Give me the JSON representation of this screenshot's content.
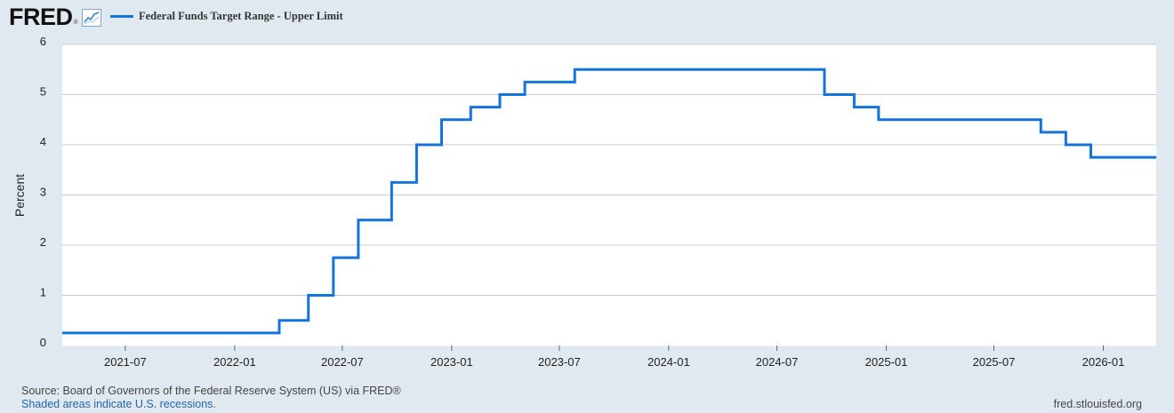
{
  "header": {
    "logo_text": "FRED",
    "logo_reg": "®",
    "logo_icon": "line-chart-icon",
    "legend_label": "Federal Funds Target Range - Upper Limit"
  },
  "footer": {
    "source": "Source: Board of Governors of the Federal Reserve System (US) via FRED®",
    "recessions": "Shaded areas indicate U.S. recessions.",
    "site": "fred.stlouisfed.org"
  },
  "colors": {
    "background": "#e1e9f0",
    "plot_background": "#ffffff",
    "series": "#1573dc",
    "grid": "#cccccc"
  },
  "chart_data": {
    "type": "line",
    "step": true,
    "title": "",
    "ylabel": "Percent",
    "ylim": [
      0,
      6
    ],
    "xlim": [
      "2021-03-17",
      "2026-03-31"
    ],
    "yticks": [
      0,
      1,
      2,
      3,
      4,
      5,
      6
    ],
    "xticks": [
      "2021-07",
      "2022-01",
      "2022-07",
      "2023-01",
      "2023-07",
      "2024-01",
      "2024-07",
      "2025-01",
      "2025-07",
      "2026-01"
    ],
    "grid": true,
    "legend": "top-left",
    "series": [
      {
        "name": "Federal Funds Target Range - Upper Limit",
        "points": [
          {
            "x": "2021-03-17",
            "y": 0.25
          },
          {
            "x": "2022-03-17",
            "y": 0.5
          },
          {
            "x": "2022-05-05",
            "y": 1.0
          },
          {
            "x": "2022-06-16",
            "y": 1.75
          },
          {
            "x": "2022-07-28",
            "y": 2.5
          },
          {
            "x": "2022-09-22",
            "y": 3.25
          },
          {
            "x": "2022-11-03",
            "y": 4.0
          },
          {
            "x": "2022-12-15",
            "y": 4.5
          },
          {
            "x": "2023-02-02",
            "y": 4.75
          },
          {
            "x": "2023-03-23",
            "y": 5.0
          },
          {
            "x": "2023-05-04",
            "y": 5.25
          },
          {
            "x": "2023-07-27",
            "y": 5.5
          },
          {
            "x": "2024-09-19",
            "y": 5.0
          },
          {
            "x": "2024-11-08",
            "y": 4.75
          },
          {
            "x": "2024-12-19",
            "y": 4.5
          },
          {
            "x": "2025-09-18",
            "y": 4.25
          },
          {
            "x": "2025-10-30",
            "y": 4.0
          },
          {
            "x": "2025-12-11",
            "y": 3.75
          },
          {
            "x": "2026-03-31",
            "y": 3.75
          }
        ]
      }
    ]
  }
}
